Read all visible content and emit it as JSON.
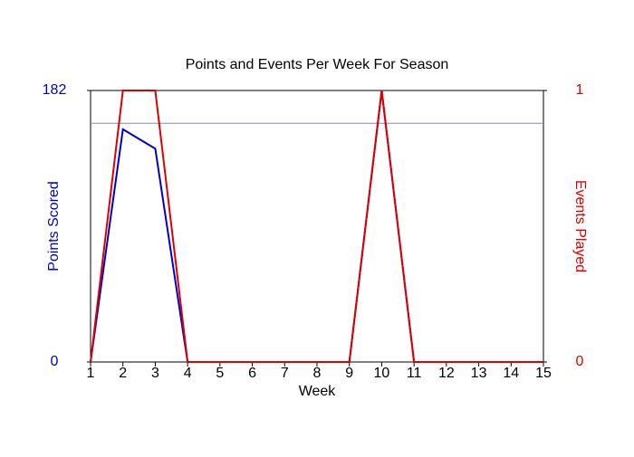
{
  "chart_data": {
    "type": "line",
    "title": "Points and Events Per Week For Season",
    "x_label": "Week",
    "y_label": "Points Scored",
    "y2_label": "Events Played",
    "y_label_color": "#0000cc",
    "y2_label_color": "#dd0000",
    "x": [
      1,
      2,
      3,
      4,
      5,
      6,
      7,
      8,
      9,
      10,
      11,
      12,
      13,
      14,
      15
    ],
    "xlim": [
      1,
      15
    ],
    "xticks": [
      1,
      2,
      3,
      4,
      5,
      6,
      7,
      8,
      9,
      10,
      11,
      12,
      13,
      14,
      15
    ],
    "ylim": [
      0,
      182
    ],
    "yticks": [
      0,
      182
    ],
    "y2lim": [
      0,
      1
    ],
    "y2ticks": [
      0,
      1
    ],
    "reference_line": {
      "value": 160,
      "color": "#8888bb"
    },
    "series": [
      {
        "name": "Points Scored",
        "color": "#0000cc",
        "values": [
          0,
          156,
          143,
          0,
          0,
          0,
          0,
          0,
          0,
          182,
          0,
          0,
          0,
          0,
          0
        ]
      },
      {
        "name": "Events Played",
        "color": "#dd0000",
        "axis": "y2",
        "values": [
          0,
          1,
          1,
          0,
          0,
          0,
          0,
          0,
          0,
          1,
          0,
          0,
          0,
          0,
          0
        ]
      }
    ]
  }
}
